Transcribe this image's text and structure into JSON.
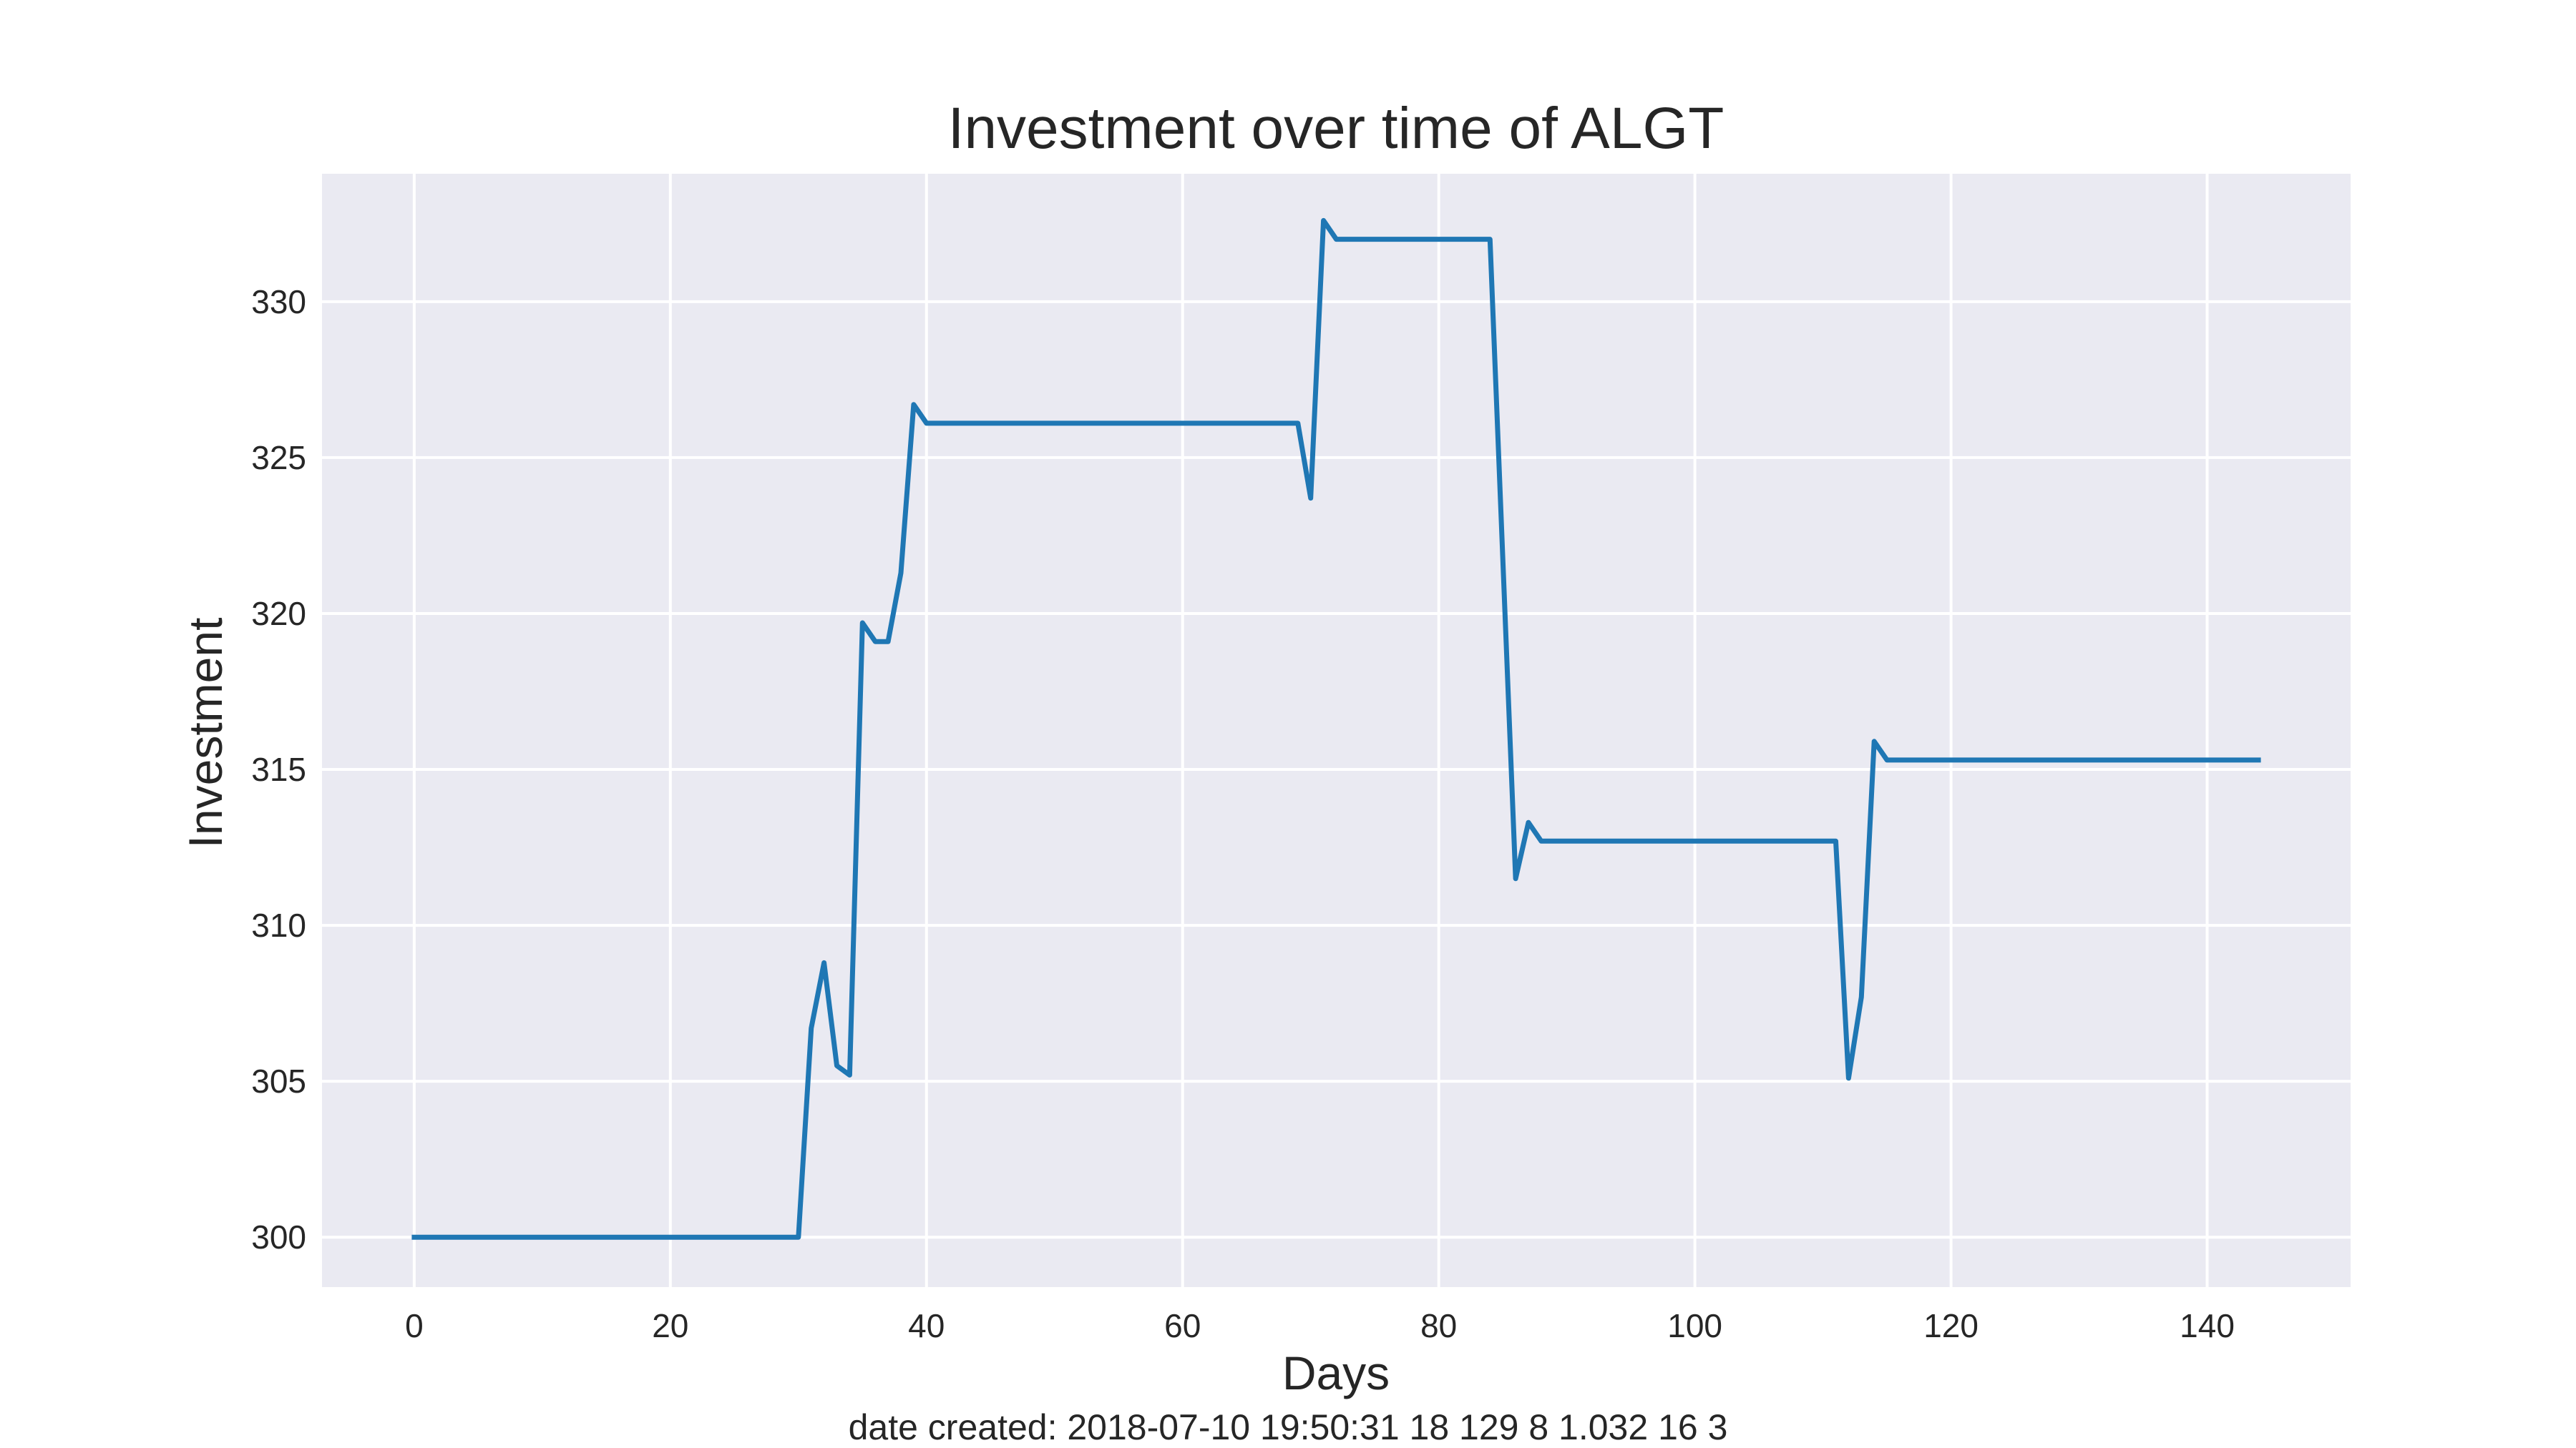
{
  "chart_data": {
    "type": "line",
    "title": "Investment over time of ALGT",
    "xlabel": "Days",
    "ylabel": "Investment",
    "xlim": [
      -7.2,
      151.2
    ],
    "ylim": [
      298.4,
      334.1
    ],
    "xticks": [
      0,
      20,
      40,
      60,
      80,
      100,
      120,
      140
    ],
    "yticks": [
      300,
      305,
      310,
      315,
      320,
      325,
      330
    ],
    "grid": true,
    "legend": "none",
    "colors": {
      "background": "#eaeaf2",
      "grid": "#ffffff",
      "line": "#1f77b4"
    },
    "series": [
      {
        "x": [
          0,
          30,
          31,
          32,
          33,
          34,
          35,
          36,
          37,
          38,
          39,
          40,
          69,
          70,
          71,
          72,
          84,
          86,
          87,
          88,
          111,
          112,
          113,
          114,
          115,
          144
        ],
        "y": [
          300.0,
          300.0,
          306.7,
          308.8,
          305.5,
          305.2,
          319.7,
          319.1,
          319.1,
          321.3,
          326.7,
          326.1,
          326.1,
          323.7,
          332.6,
          332.0,
          332.0,
          311.5,
          313.3,
          312.7,
          312.7,
          305.1,
          307.7,
          315.9,
          315.3,
          315.3
        ]
      }
    ]
  },
  "footer_text": "date created: 2018-07-10 19:50:31 18 129 8 1.032 16 3"
}
